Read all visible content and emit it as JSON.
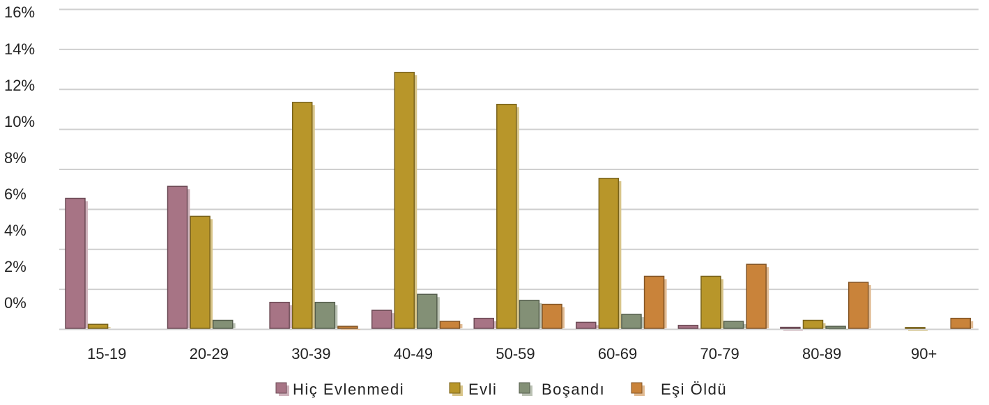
{
  "chart_data": {
    "type": "bar",
    "categories": [
      "15-19",
      "20-29",
      "30-39",
      "40-49",
      "50-59",
      "60-69",
      "70-79",
      "80-89",
      "90+"
    ],
    "series": [
      {
        "name": "Hiç Evlenmedi",
        "color": "#a77485",
        "values": [
          6.5,
          7.1,
          1.3,
          0.9,
          0.5,
          0.3,
          0.15,
          0.05,
          0.0
        ]
      },
      {
        "name": "Evli",
        "color": "#b8962a",
        "values": [
          0.2,
          5.6,
          11.3,
          12.8,
          11.2,
          7.5,
          2.6,
          0.4,
          0.04
        ]
      },
      {
        "name": "Boşandı",
        "color": "#839076",
        "values": [
          0.0,
          0.4,
          1.3,
          1.7,
          1.4,
          0.7,
          0.35,
          0.1,
          0.0
        ]
      },
      {
        "name": "Eşi Öldü",
        "color": "#c9833a",
        "values": [
          0.0,
          0.0,
          0.1,
          0.35,
          1.2,
          2.6,
          3.2,
          2.3,
          0.5
        ]
      }
    ],
    "yticks": [
      "16%",
      "14%",
      "12%",
      "10%",
      "8%",
      "6%",
      "4%",
      "2%",
      "0%"
    ],
    "ylim": [
      0,
      16
    ],
    "xlabel": "",
    "ylabel": "",
    "grid": true,
    "legend": "bottom"
  }
}
